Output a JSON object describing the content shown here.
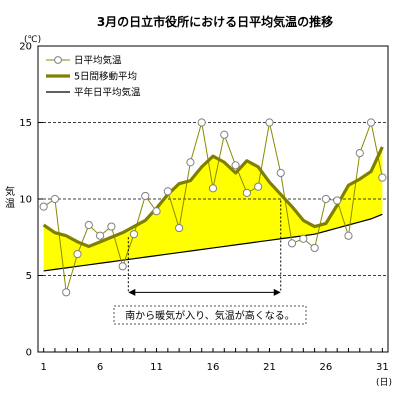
{
  "chart_data": {
    "type": "line",
    "title": "3月の日立市役所における日平均気温の推移",
    "y_unit": "(℃)",
    "ylabel": "気温",
    "x_unit": "(日)",
    "ylim": [
      0,
      20
    ],
    "xlim": [
      1,
      31
    ],
    "y_ticks": [
      "0",
      "5",
      "10",
      "15",
      "20"
    ],
    "x_ticks": [
      {
        "value": 1,
        "label": "1"
      },
      {
        "value": 6,
        "label": "6"
      },
      {
        "value": 11,
        "label": "11"
      },
      {
        "value": 16,
        "label": "16"
      },
      {
        "value": 21,
        "label": "21"
      },
      {
        "value": 26,
        "label": "26"
      },
      {
        "value": 31,
        "label": "31"
      }
    ],
    "dashed_gridlines_y": [
      5,
      10,
      15
    ],
    "legend_position": "top-left",
    "x": [
      1,
      2,
      3,
      4,
      5,
      6,
      7,
      8,
      9,
      10,
      11,
      12,
      13,
      14,
      15,
      16,
      17,
      18,
      19,
      20,
      21,
      22,
      23,
      24,
      25,
      26,
      27,
      28,
      29,
      30,
      31
    ],
    "series": [
      {
        "name": "日平均気温",
        "style": "thin line with hollow circle markers",
        "color": "#8a8a00",
        "values": [
          9.5,
          10.0,
          3.9,
          6.4,
          8.3,
          7.6,
          8.2,
          5.6,
          7.7,
          10.2,
          9.2,
          10.5,
          8.1,
          12.4,
          15.0,
          10.7,
          14.2,
          12.2,
          10.4,
          10.8,
          15.0,
          11.7,
          7.1,
          7.4,
          6.8,
          10.0,
          9.9,
          7.6,
          13.0,
          15.0,
          11.4
        ]
      },
      {
        "name": "5日間移動平均",
        "style": "thick line",
        "color": "#808000",
        "values": [
          8.3,
          7.8,
          7.6,
          7.2,
          6.9,
          7.2,
          7.5,
          7.8,
          8.2,
          8.6,
          9.4,
          10.3,
          11.0,
          11.2,
          12.1,
          12.8,
          12.4,
          11.7,
          12.5,
          12.1,
          11.1,
          10.3,
          9.5,
          8.6,
          8.2,
          8.4,
          9.6,
          10.9,
          11.3,
          11.8,
          13.4
        ]
      },
      {
        "name": "平年日平均気温",
        "style": "thin line",
        "color": "#000000",
        "values": [
          5.3,
          5.4,
          5.5,
          5.6,
          5.7,
          5.8,
          5.9,
          6.0,
          6.1,
          6.2,
          6.3,
          6.4,
          6.5,
          6.6,
          6.7,
          6.8,
          6.9,
          7.0,
          7.1,
          7.2,
          7.3,
          7.4,
          7.5,
          7.6,
          7.7,
          7.9,
          8.1,
          8.3,
          8.5,
          8.7,
          9.0
        ]
      }
    ],
    "fill_between": {
      "upper": "5日間移動平均",
      "lower": "平年日平均気温",
      "color": "#ffff00"
    },
    "annotation": {
      "text": "南から暖気が入り、気温が高くなる。",
      "x_start": 8.5,
      "x_end": 22,
      "y_arrow": 3.9
    },
    "colors": {
      "fill": "#ffff00",
      "moving_avg": "#808000",
      "daily": "#8a8a00",
      "normal": "#000000",
      "marker_fill": "#ffffff",
      "marker_stroke": "#808080"
    }
  }
}
